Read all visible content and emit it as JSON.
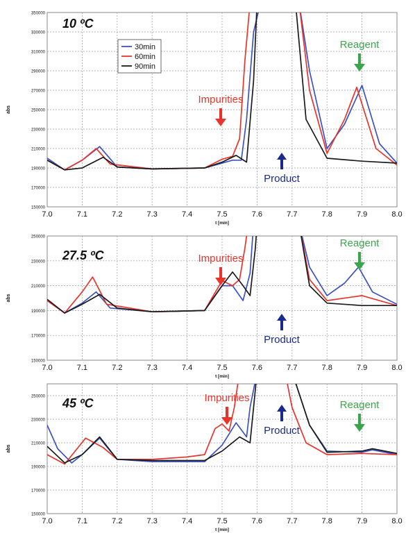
{
  "chart_data": [
    {
      "type": "line",
      "title": "10 ºC",
      "xlabel": "t [min]",
      "ylabel": "abs",
      "xlim": [
        7.0,
        8.0
      ],
      "ylim": [
        150000,
        350000
      ],
      "x_ticks": [
        "7.0",
        "7.1",
        "7.2",
        "7.3",
        "7.4",
        "7.5",
        "7.6",
        "7.7",
        "7.8",
        "7.9",
        "8.0"
      ],
      "y_ticks": [
        "150000",
        "170000",
        "190000",
        "210000",
        "230000",
        "250000",
        "270000",
        "290000",
        "310000",
        "330000",
        "350000"
      ],
      "grid": true,
      "legend": {
        "position": "top-left",
        "entries": [
          "30min",
          "60min",
          "90min"
        ]
      },
      "series": [
        {
          "name": "30min",
          "color": "#3b52c4",
          "x": [
            7.0,
            7.05,
            7.1,
            7.15,
            7.2,
            7.3,
            7.45,
            7.5,
            7.53,
            7.555,
            7.57,
            7.59,
            7.61,
            7.72,
            7.75,
            7.8,
            7.85,
            7.9,
            7.95,
            8.0
          ],
          "y": [
            200000,
            188000,
            198000,
            212000,
            191000,
            189000,
            190000,
            195000,
            198000,
            198000,
            240000,
            330000,
            360000,
            360000,
            290000,
            210000,
            235000,
            275000,
            215000,
            195000
          ]
        },
        {
          "name": "60min",
          "color": "#e8342a",
          "x": [
            7.0,
            7.05,
            7.1,
            7.14,
            7.18,
            7.3,
            7.45,
            7.5,
            7.53,
            7.55,
            7.565,
            7.58,
            7.72,
            7.75,
            7.8,
            7.85,
            7.885,
            7.94,
            8.0
          ],
          "y": [
            198000,
            188000,
            198000,
            210000,
            194000,
            189000,
            190000,
            199000,
            202000,
            220000,
            300000,
            360000,
            360000,
            270000,
            205000,
            240000,
            273000,
            210000,
            193000
          ]
        },
        {
          "name": "90min",
          "color": "#1a1a1a",
          "x": [
            7.0,
            7.05,
            7.1,
            7.16,
            7.2,
            7.3,
            7.45,
            7.5,
            7.54,
            7.57,
            7.59,
            7.6,
            7.71,
            7.74,
            7.8,
            7.9,
            8.0
          ],
          "y": [
            198000,
            188000,
            190000,
            201000,
            191000,
            189000,
            190000,
            196000,
            203000,
            196000,
            280000,
            360000,
            360000,
            240000,
            200000,
            197000,
            195000
          ]
        }
      ],
      "annotations": [
        {
          "text": "Impurities",
          "color": "#e8342a",
          "arrow": "down"
        },
        {
          "text": "Product",
          "color": "#1a2a8c",
          "arrow": "up"
        },
        {
          "text": "Reagent",
          "color": "#3aa54a",
          "arrow": "down"
        }
      ]
    },
    {
      "type": "line",
      "title": "27.5 ºC",
      "xlabel": "t [min]",
      "ylabel": "abs",
      "xlim": [
        7.0,
        8.0
      ],
      "ylim": [
        150000,
        250000
      ],
      "x_ticks": [
        "7.0",
        "7.1",
        "7.2",
        "7.3",
        "7.4",
        "7.5",
        "7.6",
        "7.7",
        "7.8",
        "7.9",
        "8.0"
      ],
      "y_ticks": [
        "150000",
        "170000",
        "190000",
        "210000",
        "230000",
        "250000"
      ],
      "grid": true,
      "series": [
        {
          "name": "30min",
          "color": "#3b52c4",
          "x": [
            7.0,
            7.05,
            7.1,
            7.14,
            7.18,
            7.3,
            7.45,
            7.5,
            7.53,
            7.56,
            7.58,
            7.59,
            7.72,
            7.75,
            7.8,
            7.85,
            7.89,
            7.93,
            8.0
          ],
          "y": [
            198000,
            188000,
            196000,
            205000,
            192000,
            189000,
            190000,
            210000,
            210000,
            198000,
            220000,
            260000,
            260000,
            225000,
            202000,
            212000,
            225000,
            205000,
            195000
          ]
        },
        {
          "name": "60min",
          "color": "#e8342a",
          "x": [
            7.0,
            7.05,
            7.1,
            7.13,
            7.17,
            7.3,
            7.45,
            7.5,
            7.53,
            7.55,
            7.565,
            7.575,
            7.72,
            7.75,
            7.8,
            7.9,
            8.0
          ],
          "y": [
            198000,
            188000,
            205000,
            217000,
            195000,
            189000,
            190000,
            214000,
            210000,
            215000,
            240000,
            260000,
            260000,
            215000,
            198000,
            202000,
            194000
          ]
        },
        {
          "name": "90min",
          "color": "#1a1a1a",
          "x": [
            7.0,
            7.05,
            7.1,
            7.15,
            7.2,
            7.3,
            7.45,
            7.5,
            7.53,
            7.56,
            7.58,
            7.595,
            7.6,
            7.72,
            7.75,
            7.8,
            7.9,
            8.0
          ],
          "y": [
            199000,
            188000,
            195000,
            203000,
            192000,
            189000,
            190000,
            210000,
            221000,
            210000,
            202000,
            240000,
            260000,
            260000,
            210000,
            196000,
            194000,
            194000
          ]
        }
      ],
      "annotations": [
        {
          "text": "Impurities",
          "color": "#e8342a",
          "arrow": "down"
        },
        {
          "text": "Product",
          "color": "#1a2a8c",
          "arrow": "up"
        },
        {
          "text": "Reagent",
          "color": "#3aa54a",
          "arrow": "down"
        }
      ]
    },
    {
      "type": "line",
      "title": "45 ºC",
      "xlabel": "t [min]",
      "ylabel": "abs",
      "xlim": [
        7.0,
        8.0
      ],
      "ylim": [
        150000,
        260000
      ],
      "x_ticks": [
        "7.0",
        "7.1",
        "7.2",
        "7.3",
        "7.4",
        "7.5",
        "7.6",
        "7.7",
        "7.8",
        "7.9",
        "8.0"
      ],
      "y_ticks": [
        "150000",
        "170000",
        "190000",
        "210000",
        "230000",
        "250000"
      ],
      "grid": true,
      "series": [
        {
          "name": "30min",
          "color": "#3b52c4",
          "x": [
            7.0,
            7.03,
            7.07,
            7.1,
            7.15,
            7.2,
            7.3,
            7.45,
            7.5,
            7.54,
            7.57,
            7.58,
            7.6,
            7.7,
            7.75,
            7.8,
            7.9,
            7.93,
            8.0
          ],
          "y": [
            225000,
            205000,
            193000,
            200000,
            214000,
            196000,
            194000,
            194000,
            208000,
            227000,
            215000,
            240000,
            270000,
            270000,
            225000,
            203000,
            202000,
            204000,
            200000
          ]
        },
        {
          "name": "60min",
          "color": "#e8342a",
          "x": [
            7.0,
            7.05,
            7.11,
            7.16,
            7.2,
            7.3,
            7.4,
            7.45,
            7.48,
            7.5,
            7.52,
            7.535,
            7.55,
            7.68,
            7.7,
            7.74,
            7.8,
            7.9,
            8.0
          ],
          "y": [
            200000,
            192000,
            214000,
            206000,
            196000,
            196000,
            198000,
            200000,
            222000,
            226000,
            220000,
            240000,
            270000,
            270000,
            240000,
            210000,
            200000,
            201000,
            200000
          ]
        },
        {
          "name": "90min",
          "color": "#1a1a1a",
          "x": [
            7.0,
            7.05,
            7.1,
            7.15,
            7.2,
            7.3,
            7.45,
            7.5,
            7.55,
            7.58,
            7.59,
            7.6,
            7.7,
            7.75,
            7.8,
            7.9,
            7.93,
            8.0
          ],
          "y": [
            207000,
            193000,
            200000,
            215000,
            196000,
            195000,
            195000,
            203000,
            215000,
            210000,
            240000,
            270000,
            270000,
            225000,
            202000,
            203000,
            205000,
            201000
          ]
        }
      ],
      "annotations": [
        {
          "text": "Impurities",
          "color": "#e8342a",
          "arrow": "down"
        },
        {
          "text": "Product",
          "color": "#1a2a8c",
          "arrow": "up"
        },
        {
          "text": "Reagent",
          "color": "#3aa54a",
          "arrow": "down"
        }
      ]
    }
  ]
}
